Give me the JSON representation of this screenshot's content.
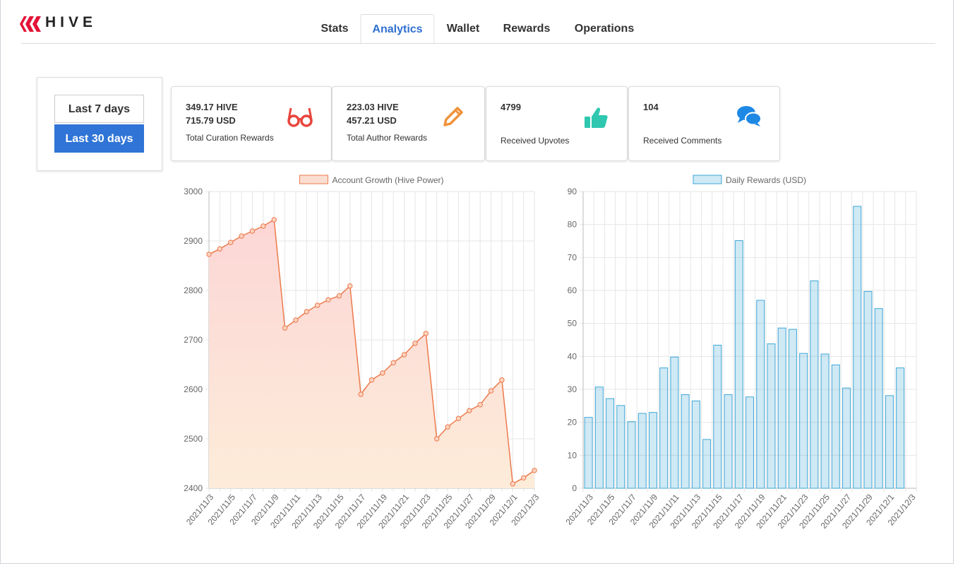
{
  "header": {
    "logo": "HIVE"
  },
  "tabs": [
    "Stats",
    "Analytics",
    "Wallet",
    "Rewards",
    "Operations"
  ],
  "active_tab": 1,
  "range_buttons": [
    "Last 7 days",
    "Last 30 days"
  ],
  "selected_range": 1,
  "cards": [
    {
      "lines": [
        "349.17 HIVE",
        "715.79 USD"
      ],
      "caption": "Total Curation Rewards",
      "color": "#e8453c"
    },
    {
      "lines": [
        "223.03 HIVE",
        "457.21 USD"
      ],
      "caption": "Total Author Rewards",
      "color": "#f0923a"
    },
    {
      "lines": [
        "4799"
      ],
      "caption": "Received Upvotes",
      "color": "#2fc7b0"
    },
    {
      "lines": [
        "104"
      ],
      "caption": "Received Comments",
      "color": "#1e88e5"
    }
  ],
  "chart_data": [
    {
      "type": "line",
      "categories": [
        "2021/11/3",
        null,
        "2021/11/5",
        null,
        "2021/11/7",
        null,
        "2021/11/9",
        null,
        "2021/11/11",
        null,
        "2021/11/13",
        null,
        "2021/11/15",
        null,
        "2021/11/17",
        null,
        "2021/11/19",
        null,
        "2021/11/21",
        null,
        "2021/11/23",
        null,
        "2021/11/25",
        null,
        "2021/11/27",
        null,
        "2021/11/29",
        null,
        "2021/12/1",
        null,
        "2021/12/3"
      ],
      "series": [
        {
          "name": "Account Growth (Hive Power)",
          "color": "#ec7a4c",
          "values": [
            2873,
            2884,
            2897,
            2910,
            2920,
            2930,
            2943,
            2724,
            2740,
            2757,
            2770,
            2781,
            2789,
            2809,
            2590,
            2619,
            2633,
            2654,
            2670,
            2693,
            2713,
            2500,
            2524,
            2541,
            2557,
            2569,
            2597,
            2619,
            2409,
            2421,
            2436
          ]
        }
      ],
      "ylim": [
        2400,
        3000
      ],
      "yticks": [
        2400,
        2500,
        2600,
        2700,
        2800,
        2900,
        3000
      ],
      "grid": true
    },
    {
      "type": "bar",
      "categories": [
        "2021/11/3",
        null,
        "2021/11/5",
        null,
        "2021/11/7",
        null,
        "2021/11/9",
        null,
        "2021/11/11",
        null,
        "2021/11/13",
        null,
        "2021/11/15",
        null,
        "2021/11/17",
        null,
        "2021/11/19",
        null,
        "2021/11/21",
        null,
        "2021/11/23",
        null,
        "2021/11/25",
        null,
        "2021/11/27",
        null,
        "2021/11/29",
        null,
        "2021/12/1",
        null,
        "2021/12/3"
      ],
      "series": [
        {
          "name": "Daily Rewards (USD)",
          "color": "#3fa7d6",
          "values": [
            21.5,
            30.7,
            27.2,
            25.1,
            20.2,
            22.7,
            23,
            36.5,
            39.8,
            28.4,
            26.5,
            14.8,
            43.4,
            28.4,
            75.1,
            27.7,
            57,
            43.8,
            48.6,
            48.2,
            40.9,
            62.9,
            40.7,
            37.4,
            30.4,
            85.5,
            59.7,
            54.5,
            28.1,
            36.5,
            null
          ]
        }
      ],
      "ylim": [
        0,
        90
      ],
      "yticks": [
        0,
        10,
        20,
        30,
        40,
        50,
        60,
        70,
        80,
        90
      ],
      "grid": true
    }
  ]
}
